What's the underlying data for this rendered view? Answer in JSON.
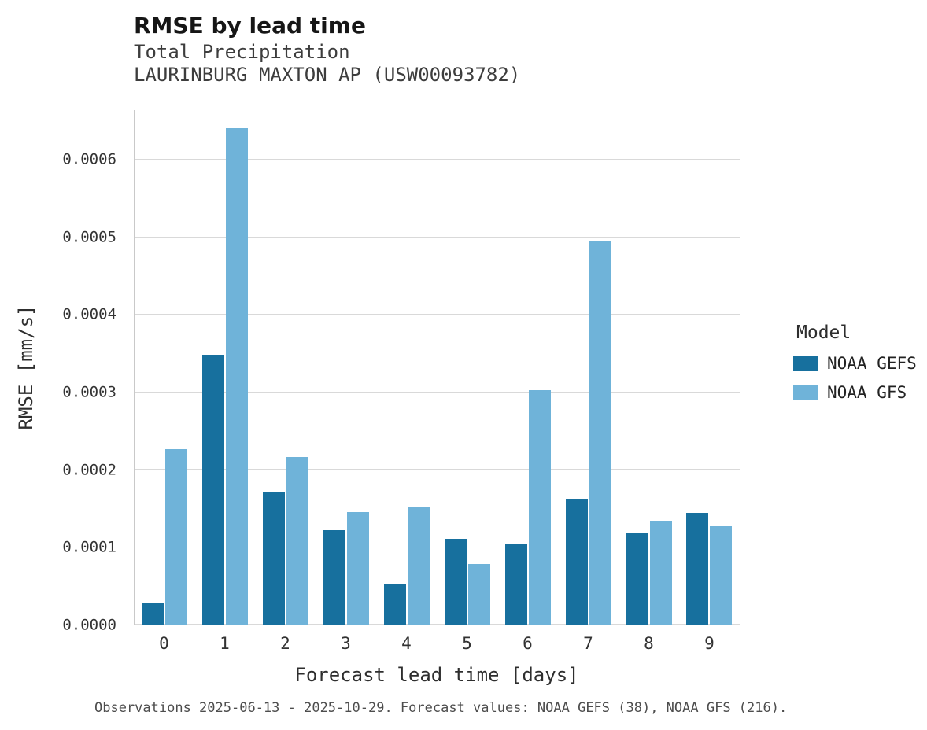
{
  "legend": {
    "title": "Model"
  },
  "footnote": "Observations 2025-06-13 - 2025-10-29. Forecast values: NOAA GEFS (38), NOAA GFS (216).",
  "chart_data": {
    "type": "bar",
    "title": "RMSE by lead time",
    "subtitle": [
      "Total Precipitation",
      "LAURINBURG MAXTON AP (USW00093782)"
    ],
    "xlabel": "Forecast lead time [days]",
    "ylabel": "RMSE [mm/s]",
    "categories": [
      "0",
      "1",
      "2",
      "3",
      "4",
      "5",
      "6",
      "7",
      "8",
      "9"
    ],
    "series": [
      {
        "name": "NOAA GEFS",
        "color": "#17709e",
        "values": [
          2.8e-05,
          0.000348,
          0.000171,
          0.000122,
          5.3e-05,
          0.000111,
          0.000104,
          0.000162,
          0.000119,
          0.000144
        ]
      },
      {
        "name": "NOAA GFS",
        "color": "#6fb3d9",
        "values": [
          0.000226,
          0.000641,
          0.000216,
          0.000145,
          0.000152,
          7.8e-05,
          0.000303,
          0.000495,
          0.000134,
          0.000127
        ]
      }
    ],
    "ylim": [
      0,
      0.000664
    ],
    "yticks": [
      0,
      0.0001,
      0.0002,
      0.0003,
      0.0004,
      0.0005,
      0.0006
    ],
    "ytick_labels": [
      "0.0000",
      "0.0001",
      "0.0002",
      "0.0003",
      "0.0004",
      "0.0005",
      "0.0006"
    ],
    "grid": "horizontal",
    "legend_position": "right"
  }
}
